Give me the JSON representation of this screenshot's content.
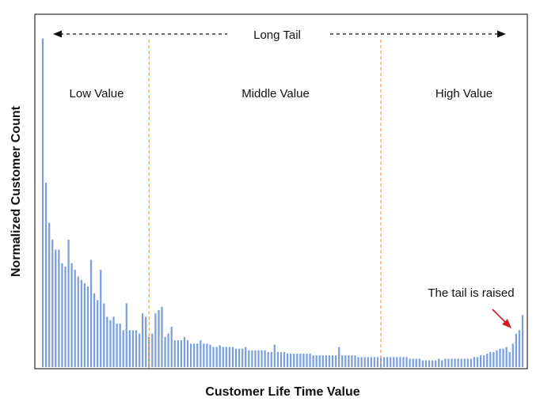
{
  "chart_data": {
    "type": "bar",
    "title": "",
    "xlabel": "Customer Life Time Value",
    "ylabel": "Normalized Customer Count",
    "ylim": [
      0,
      1
    ],
    "grid": false,
    "bar_color": "#7b9fdc",
    "divider_color": "#f0a050",
    "annotation_color": "#cc1f1f",
    "regions": [
      "Low Value",
      "Middle Value",
      "High Value"
    ],
    "top_annotation": "Long Tail",
    "tail_annotation": "The tail is raised",
    "values": [
      0.98,
      0.55,
      0.43,
      0.38,
      0.35,
      0.35,
      0.31,
      0.3,
      0.38,
      0.31,
      0.29,
      0.27,
      0.26,
      0.25,
      0.24,
      0.32,
      0.22,
      0.2,
      0.29,
      0.19,
      0.15,
      0.14,
      0.15,
      0.13,
      0.13,
      0.11,
      0.19,
      0.11,
      0.11,
      0.11,
      0.1,
      0.16,
      0.15,
      0.09,
      0.1,
      0.16,
      0.17,
      0.18,
      0.09,
      0.1,
      0.12,
      0.08,
      0.08,
      0.08,
      0.09,
      0.08,
      0.07,
      0.07,
      0.07,
      0.08,
      0.07,
      0.07,
      0.067,
      0.06,
      0.06,
      0.065,
      0.06,
      0.06,
      0.06,
      0.06,
      0.055,
      0.055,
      0.055,
      0.06,
      0.05,
      0.05,
      0.05,
      0.05,
      0.05,
      0.05,
      0.045,
      0.045,
      0.067,
      0.045,
      0.045,
      0.045,
      0.04,
      0.04,
      0.04,
      0.04,
      0.04,
      0.04,
      0.04,
      0.04,
      0.035,
      0.035,
      0.035,
      0.035,
      0.035,
      0.035,
      0.035,
      0.035,
      0.06,
      0.035,
      0.035,
      0.035,
      0.035,
      0.035,
      0.03,
      0.03,
      0.03,
      0.03,
      0.03,
      0.03,
      0.03,
      0.03,
      0.03,
      0.03,
      0.03,
      0.03,
      0.03,
      0.03,
      0.03,
      0.03,
      0.025,
      0.025,
      0.025,
      0.025,
      0.02,
      0.02,
      0.02,
      0.02,
      0.02,
      0.025,
      0.02,
      0.025,
      0.025,
      0.025,
      0.025,
      0.025,
      0.025,
      0.025,
      0.025,
      0.025,
      0.03,
      0.03,
      0.035,
      0.035,
      0.04,
      0.045,
      0.045,
      0.05,
      0.055,
      0.055,
      0.06,
      0.045,
      0.07,
      0.1,
      0.11,
      0.155
    ],
    "region_boundaries": [
      33.5,
      105.5
    ]
  }
}
